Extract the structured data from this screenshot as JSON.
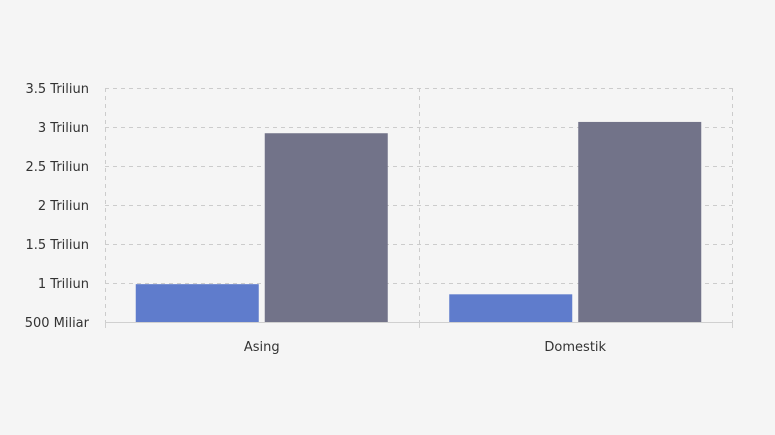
{
  "chart_data": {
    "type": "bar",
    "title": "",
    "xlabel": "",
    "ylabel": "",
    "categories": [
      "Asing",
      "Domestik"
    ],
    "series": [
      {
        "values": [
          985000000000,
          855000000000
        ],
        "color": "#5f7ccc"
      },
      {
        "values": [
          2920000000000,
          3065000000000
        ],
        "color": "#727389"
      }
    ],
    "ylim": [
      500000000000,
      3500000000000
    ],
    "yticks": [
      500000000000,
      1000000000000,
      1500000000000,
      2000000000000,
      2500000000000,
      3000000000000,
      3500000000000
    ],
    "ytick_labels": [
      "500 Miliar",
      "1 Triliun",
      "1.5 Triliun",
      "2 Triliun",
      "2.5 Triliun",
      "3 Triliun",
      "3.5 Triliun"
    ],
    "grid": true,
    "legend": "none"
  }
}
